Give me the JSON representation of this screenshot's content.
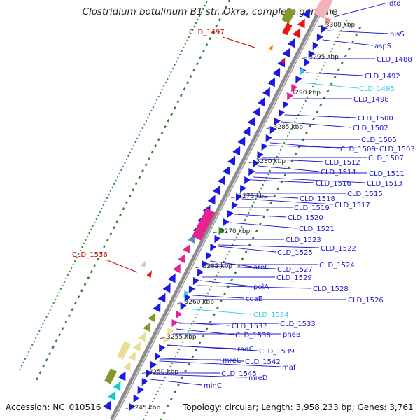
{
  "title": "Clostridium botulinum B1 str. Okra, complete genome",
  "footer": {
    "accession": "Accession: NC_010516",
    "summary": "Topology: circular; Length: 3,958,233 bp; Genes: 3,761"
  },
  "colors": {
    "gene_blue": "#1a1ae6",
    "label_blue": "#1a1acc",
    "highlight_red": "#cc0000",
    "highlight_cyan": "#33ccee",
    "backbone_gray": "#8c8c8c",
    "green_dots": "#2a8a2a"
  },
  "ticks": [
    {
      "label": "3300 kbp"
    },
    {
      "label": "3295 kbp"
    },
    {
      "label": "3290 kbp"
    },
    {
      "label": "3285 kbp"
    },
    {
      "label": "3280 kbp"
    },
    {
      "label": "3275 kbp"
    },
    {
      "label": "3270 kbp"
    },
    {
      "label": "3265 kbp"
    },
    {
      "label": "3260 kbp"
    },
    {
      "label": "3255 kbp"
    },
    {
      "label": "3250 kbp"
    },
    {
      "label": "3245 kbp"
    }
  ],
  "labels": [
    {
      "text": "dtd"
    },
    {
      "text": "hisS"
    },
    {
      "text": "aspS"
    },
    {
      "text": "CLD_1488"
    },
    {
      "text": "CLD_1492"
    },
    {
      "text": "CLD_1495"
    },
    {
      "text": "CLD_1498"
    },
    {
      "text": "CLD_1500"
    },
    {
      "text": "CLD_1502"
    },
    {
      "text": "CLD_1505"
    },
    {
      "text": "CLD_1503"
    },
    {
      "text": "CLD_1508"
    },
    {
      "text": "CLD_1507"
    },
    {
      "text": "CLD_1512"
    },
    {
      "text": "CLD_1514"
    },
    {
      "text": "CLD_1511"
    },
    {
      "text": "CLD_1516"
    },
    {
      "text": "CLD_1513"
    },
    {
      "text": "CLD_1515"
    },
    {
      "text": "CLD_1518"
    },
    {
      "text": "CLD_1517"
    },
    {
      "text": "CLD_1519"
    },
    {
      "text": "CLD_1520"
    },
    {
      "text": "CLD_1521"
    },
    {
      "text": "CLD_1523"
    },
    {
      "text": "CLD_1522"
    },
    {
      "text": "CLD_1525"
    },
    {
      "text": "CLD_1524"
    },
    {
      "text": "CLD_1527"
    },
    {
      "text": "aroC"
    },
    {
      "text": "CLD_1529"
    },
    {
      "text": "CLD_1528"
    },
    {
      "text": "polA"
    },
    {
      "text": "CLD_1526"
    },
    {
      "text": "coaE"
    },
    {
      "text": "CLD_1534"
    },
    {
      "text": "CLD_1533"
    },
    {
      "text": "CLD_1537"
    },
    {
      "text": "CLD_1538"
    },
    {
      "text": "pheB"
    },
    {
      "text": "radC"
    },
    {
      "text": "CLD_1539"
    },
    {
      "text": "mreC"
    },
    {
      "text": "CLD_1542"
    },
    {
      "text": "maf"
    },
    {
      "text": "CLD_1545"
    },
    {
      "text": "mreD"
    },
    {
      "text": "minC"
    },
    {
      "text": "CLD_1497"
    },
    {
      "text": "CLD_1536"
    }
  ]
}
